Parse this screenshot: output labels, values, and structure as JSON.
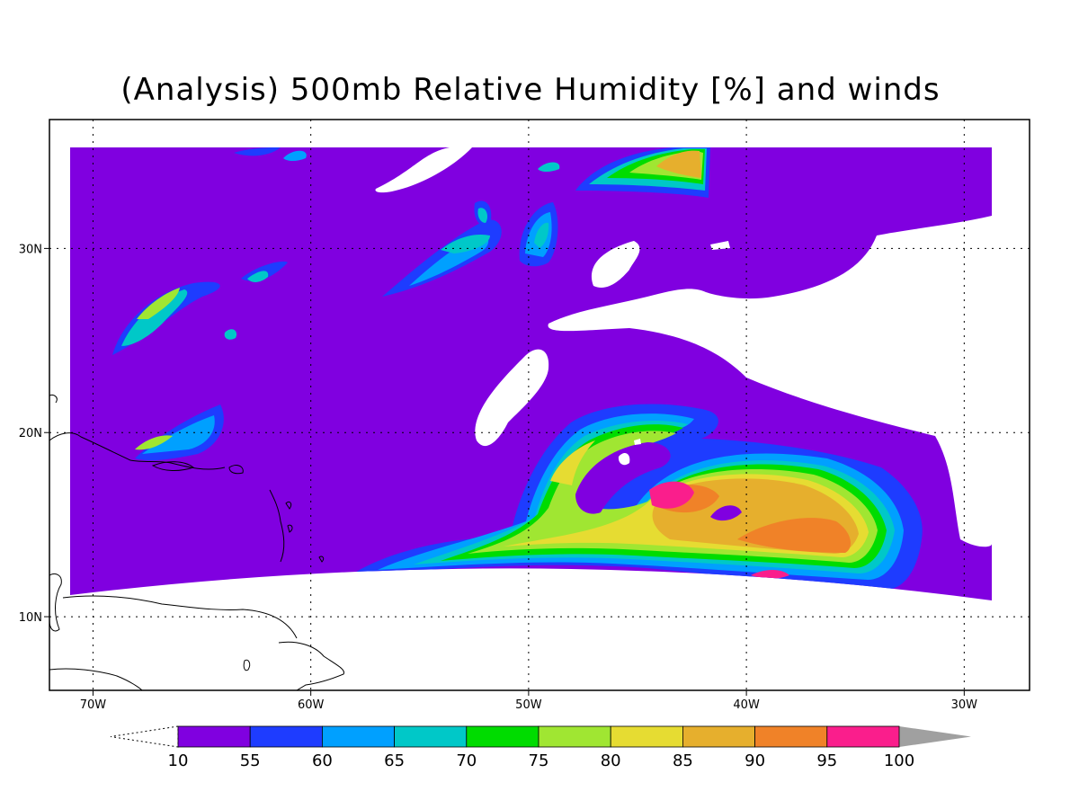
{
  "title": "(Analysis) 500mb Relative Humidity [%] and winds",
  "map": {
    "lon_range": [
      -72,
      -27
    ],
    "lat_range": [
      6,
      37
    ],
    "grid_lines": "dotted",
    "lat_ticks": [
      {
        "value": 10,
        "label": "10N"
      },
      {
        "value": 20,
        "label": "20N"
      },
      {
        "value": 30,
        "label": "30N"
      }
    ],
    "lon_ticks": [
      {
        "value": -70,
        "label": "70W"
      },
      {
        "value": -60,
        "label": "60W"
      },
      {
        "value": -50,
        "label": "50W"
      },
      {
        "value": -40,
        "label": "40W"
      },
      {
        "value": -30,
        "label": "30W"
      }
    ]
  },
  "colorbar": {
    "levels": [
      "10",
      "55",
      "60",
      "65",
      "70",
      "75",
      "80",
      "85",
      "90",
      "95",
      "100"
    ],
    "colors": [
      "#8000e0",
      "#1e3cff",
      "#00a0ff",
      "#00c8c8",
      "#00dc00",
      "#a0e632",
      "#e6dc32",
      "#e6af2d",
      "#f08228",
      "#fa1e8c"
    ],
    "over_color": "#a0a0a0",
    "under_color": "#ffffff"
  }
}
